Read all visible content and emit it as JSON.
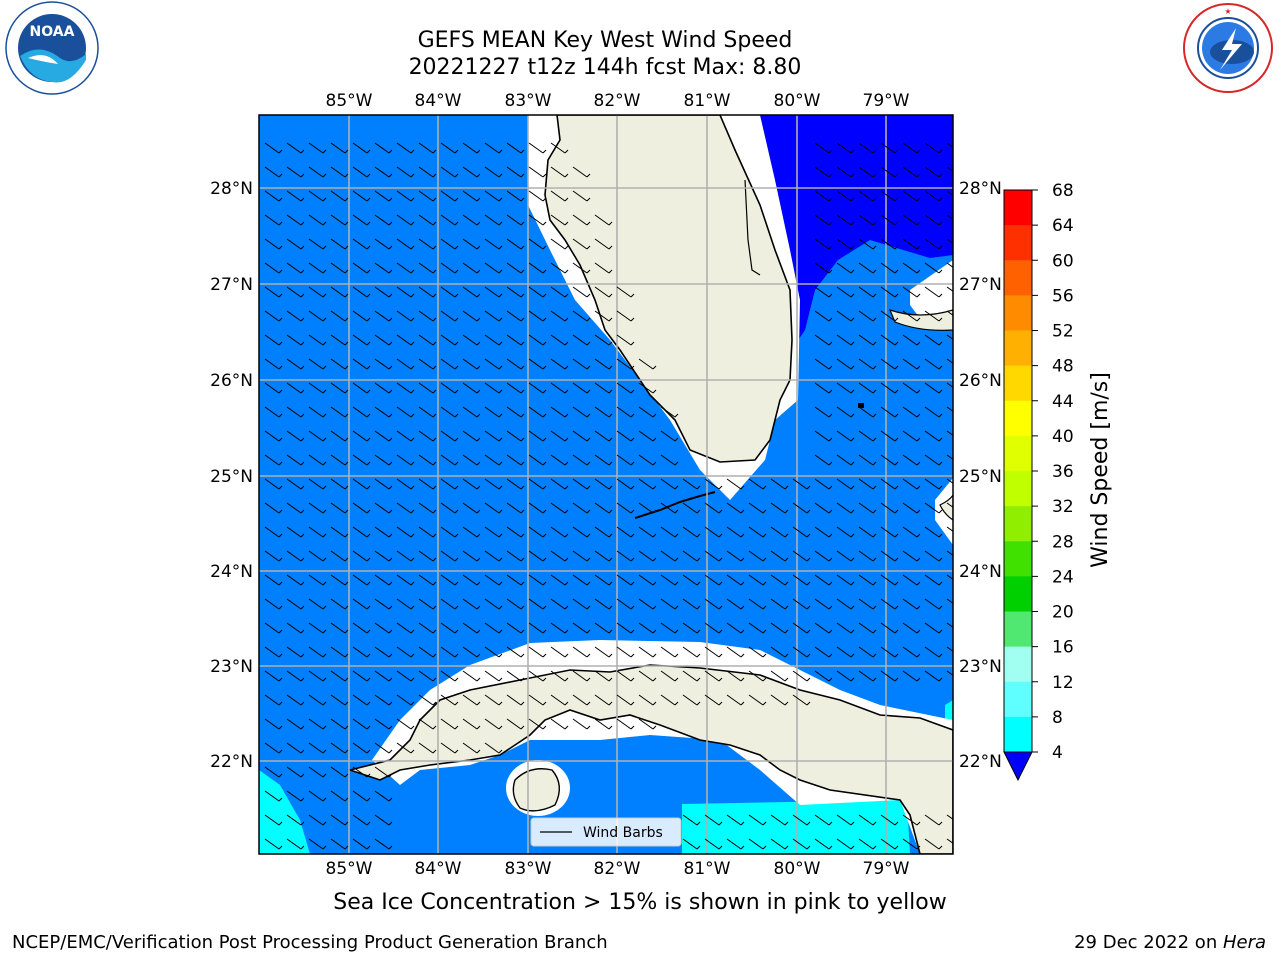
{
  "title": {
    "line1": "GEFS MEAN Key West Wind Speed",
    "line2": "20221227 t12z 144h fcst   Max: 8.80"
  },
  "logos": {
    "left": {
      "icon": "noaa-logo",
      "text": "NOAA",
      "ring_text": "NATIONAL OCEANIC AND ATMOSPHERIC ADMINISTRATION · U.S. DEPARTMENT OF COMMERCE"
    },
    "right": {
      "icon": "nws-logo",
      "ring_text": "NATIONAL WEATHER SERVICE"
    }
  },
  "map": {
    "lon_ticks": [
      "85°W",
      "84°W",
      "83°W",
      "82°W",
      "81°W",
      "80°W",
      "79°W"
    ],
    "lat_ticks": [
      "28°N",
      "27°N",
      "26°N",
      "25°N",
      "24°N",
      "23°N",
      "22°N"
    ],
    "legend_label": "Wind Barbs",
    "land_color": "#efefdf",
    "ocean_color": "#0080ff",
    "grid": true
  },
  "colorbar": {
    "label": "Wind Speed [m/s]",
    "ticks": [
      "68",
      "64",
      "60",
      "56",
      "52",
      "48",
      "44",
      "40",
      "36",
      "32",
      "28",
      "24",
      "20",
      "16",
      "12",
      "8",
      "4"
    ],
    "colors": [
      "#ff0000",
      "#ff3000",
      "#ff6000",
      "#ff8c00",
      "#ffb000",
      "#ffd800",
      "#ffff00",
      "#e0ff00",
      "#c0ff00",
      "#90ee00",
      "#40e000",
      "#00d000",
      "#50e870",
      "#a0fff0",
      "#60ffff",
      "#00ffff",
      "#0080ff"
    ],
    "extend_color": "#0000ff"
  },
  "caption": "Sea Ice Concentration > 15% is shown in pink to yellow",
  "footer": {
    "left": "NCEP/EMC/Verification Post Processing Product Generation Branch",
    "right_prefix": "29 Dec 2022 on ",
    "right_host": "Hera"
  }
}
